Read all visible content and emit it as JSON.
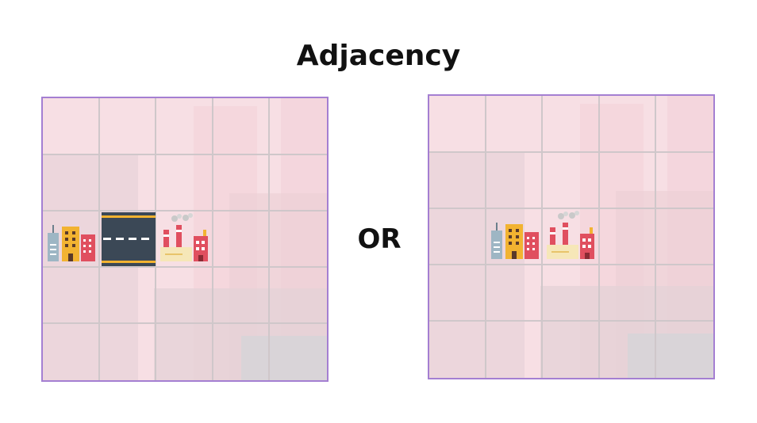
{
  "title": "Adjacency",
  "separator": "OR",
  "boards": [
    {
      "grid": {
        "rows": 5,
        "cols": 5
      },
      "tiles": [
        {
          "type": "city",
          "row": 3,
          "col": 1
        },
        {
          "type": "road",
          "row": 3,
          "col": 2
        },
        {
          "type": "factory",
          "row": 3,
          "col": 3
        }
      ]
    },
    {
      "grid": {
        "rows": 5,
        "cols": 5
      },
      "tiles": [
        {
          "type": "city",
          "row": 3,
          "col": 2
        },
        {
          "type": "factory",
          "row": 3,
          "col": 3
        }
      ]
    }
  ],
  "colors": {
    "board_border": "#a47fd2",
    "board_background": "#f7dfe4",
    "grid_lines": "#cfc7ca"
  }
}
